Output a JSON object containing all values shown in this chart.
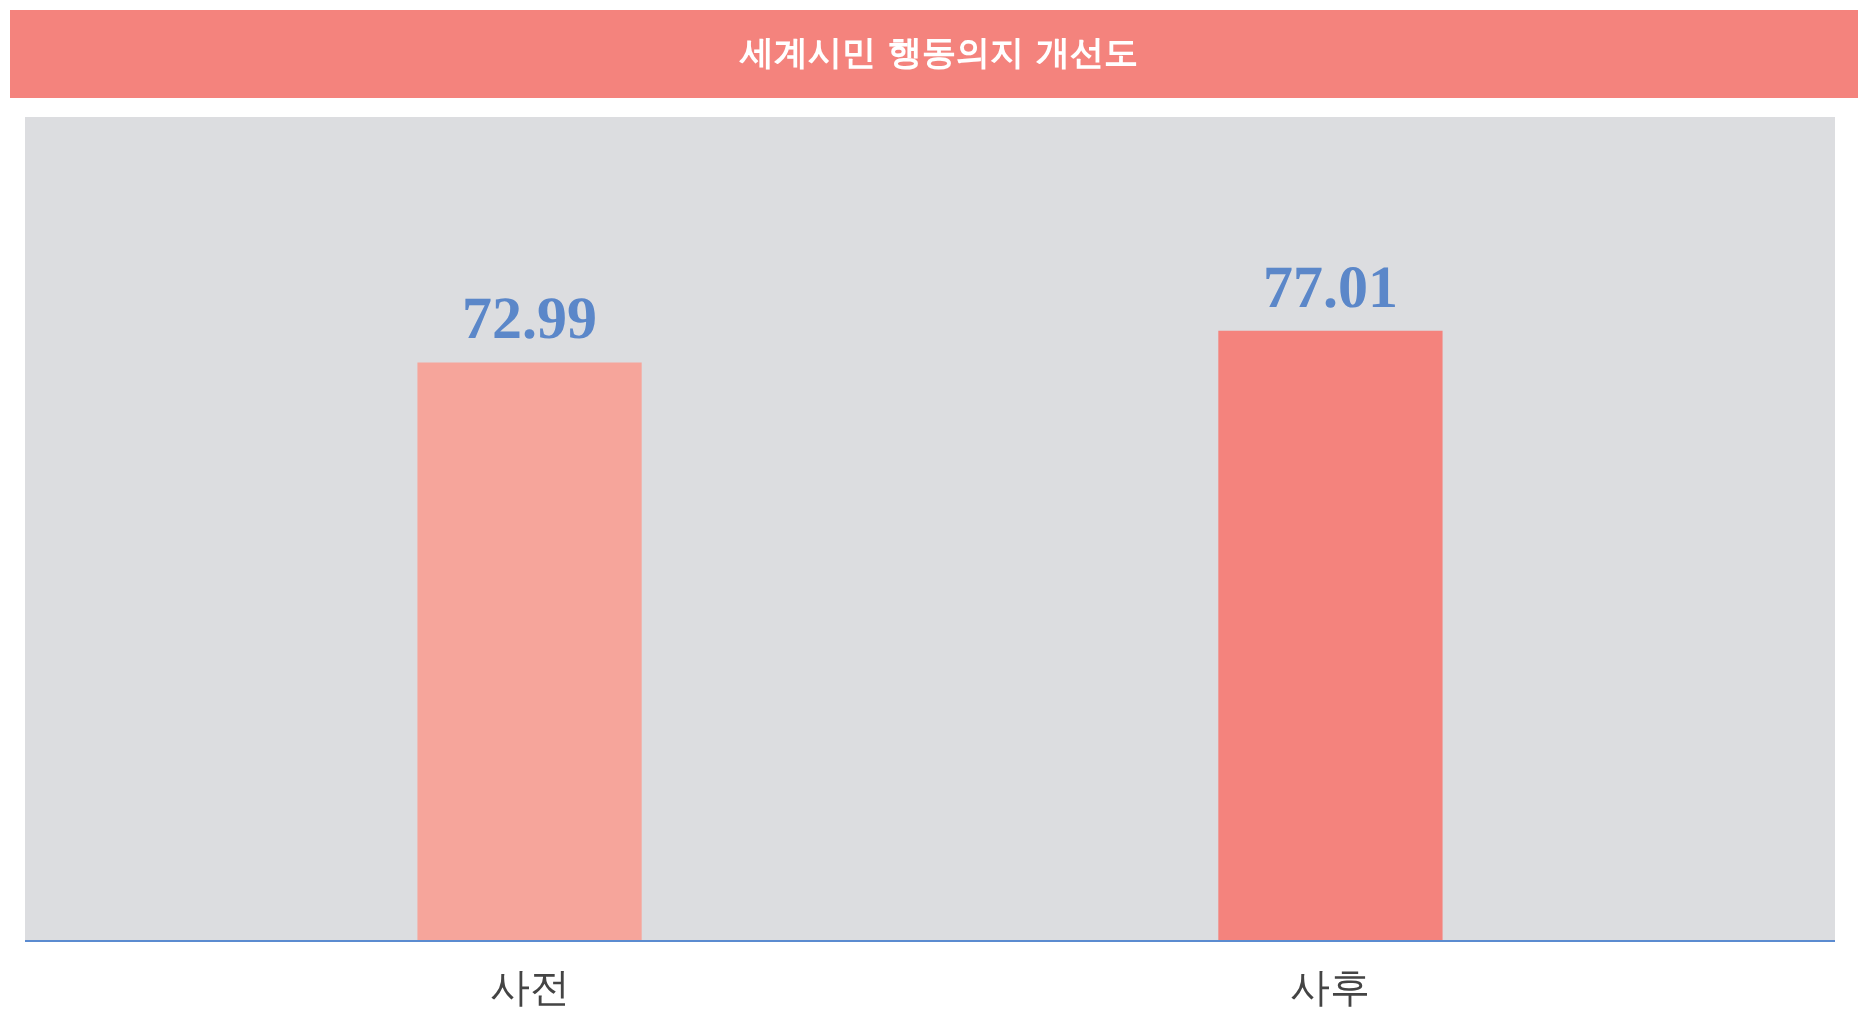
{
  "chart_data": {
    "type": "bar",
    "title": "세계시민 행동의지 개선도",
    "categories": [
      "사전",
      "사후"
    ],
    "values": [
      72.99,
      77.01
    ],
    "colors": [
      "#f6a59b",
      "#f4837d"
    ],
    "data_labels": true
  }
}
